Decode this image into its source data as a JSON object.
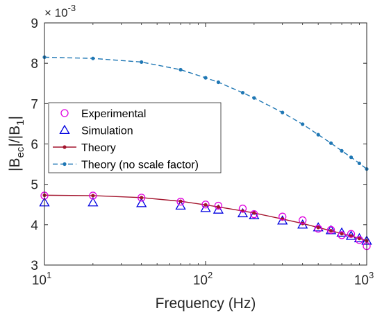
{
  "chart_data": {
    "type": "line",
    "xscale": "log",
    "xlim": [
      10,
      1000
    ],
    "ylim": [
      3,
      9
    ],
    "x_ticks": [
      {
        "base": "10",
        "exp": "1",
        "value": 10
      },
      {
        "base": "10",
        "exp": "2",
        "value": 100
      },
      {
        "base": "10",
        "exp": "3",
        "value": 1000
      }
    ],
    "y_ticks": [
      {
        "label": "3",
        "value": 3
      },
      {
        "label": "4",
        "value": 4
      },
      {
        "label": "5",
        "value": 5
      },
      {
        "label": "6",
        "value": 6
      },
      {
        "label": "7",
        "value": 7
      },
      {
        "label": "8",
        "value": 8
      },
      {
        "label": "9",
        "value": 9
      }
    ],
    "scale_factor": {
      "prefix": "× 10",
      "exp": "-3"
    },
    "xlabel": "Frequency (Hz)",
    "ylabel": {
      "p1": "|B",
      "s1": "ec",
      "p2": "|/|B",
      "s2": "1",
      "p3": "|"
    },
    "grid": false,
    "legend_position": "left",
    "series": [
      {
        "name": "Experimental",
        "style": "circle-markers",
        "color": "#e000e0",
        "x": [
          10,
          20,
          40,
          70,
          100,
          120,
          170,
          200,
          300,
          400,
          500,
          600,
          700,
          800,
          900,
          1000
        ],
        "values": [
          4.72,
          4.72,
          4.67,
          4.57,
          4.5,
          4.47,
          4.4,
          4.26,
          4.2,
          4.11,
          3.9,
          3.87,
          3.74,
          3.77,
          3.62,
          3.47
        ]
      },
      {
        "name": "Simulation",
        "style": "triangle-markers",
        "color": "#0000e0",
        "x": [
          10,
          20,
          40,
          70,
          100,
          120,
          170,
          200,
          300,
          400,
          500,
          600,
          700,
          800,
          900,
          1000
        ],
        "values": [
          4.55,
          4.55,
          4.53,
          4.47,
          4.41,
          4.37,
          4.28,
          4.23,
          4.1,
          4.0,
          3.93,
          3.86,
          3.8,
          3.72,
          3.66,
          3.6
        ]
      },
      {
        "name": "Theory",
        "style": "solid-dot",
        "color": "#a3142d",
        "x": [
          10,
          20,
          40,
          70,
          100,
          120,
          170,
          200,
          300,
          400,
          500,
          600,
          700,
          800,
          900,
          1000
        ],
        "values": [
          4.73,
          4.72,
          4.67,
          4.58,
          4.49,
          4.44,
          4.34,
          4.29,
          4.14,
          4.03,
          3.93,
          3.85,
          3.78,
          3.72,
          3.66,
          3.6
        ]
      },
      {
        "name": "Theory (no scale factor)",
        "style": "dashed-dot",
        "color": "#1f77b4",
        "x": [
          10,
          20,
          40,
          70,
          100,
          120,
          170,
          200,
          300,
          400,
          500,
          600,
          700,
          800,
          900,
          1000
        ],
        "values": [
          8.15,
          8.12,
          8.03,
          7.84,
          7.64,
          7.53,
          7.27,
          7.14,
          6.78,
          6.49,
          6.23,
          6.02,
          5.83,
          5.67,
          5.52,
          5.38
        ]
      }
    ]
  }
}
